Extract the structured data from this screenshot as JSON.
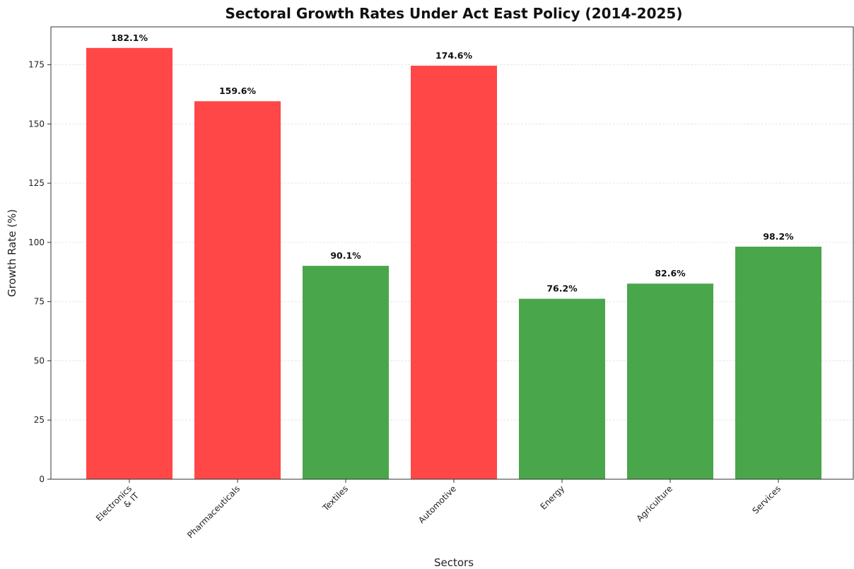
{
  "chart_data": {
    "type": "bar",
    "title": "Sectoral Growth Rates Under Act East Policy (2014-2025)",
    "xlabel": "Sectors",
    "ylabel": "Growth Rate (%)",
    "categories": [
      "Electronics\n& IT",
      "Pharmaceuticals",
      "Textiles",
      "Automotive",
      "Energy",
      "Agriculture",
      "Services"
    ],
    "values": [
      182.1,
      159.6,
      90.1,
      174.6,
      76.2,
      82.6,
      98.2
    ],
    "data_labels": [
      "182.1%",
      "159.6%",
      "90.1%",
      "174.6%",
      "76.2%",
      "82.6%",
      "98.2%"
    ],
    "bar_colors": [
      "#ff4747",
      "#ff4747",
      "#4aa64a",
      "#ff4747",
      "#4aa64a",
      "#4aa64a",
      "#4aa64a"
    ],
    "ylim": [
      0,
      191
    ],
    "yticks": [
      0,
      25,
      50,
      75,
      100,
      125,
      150,
      175
    ],
    "grid": true,
    "legend": "none"
  }
}
